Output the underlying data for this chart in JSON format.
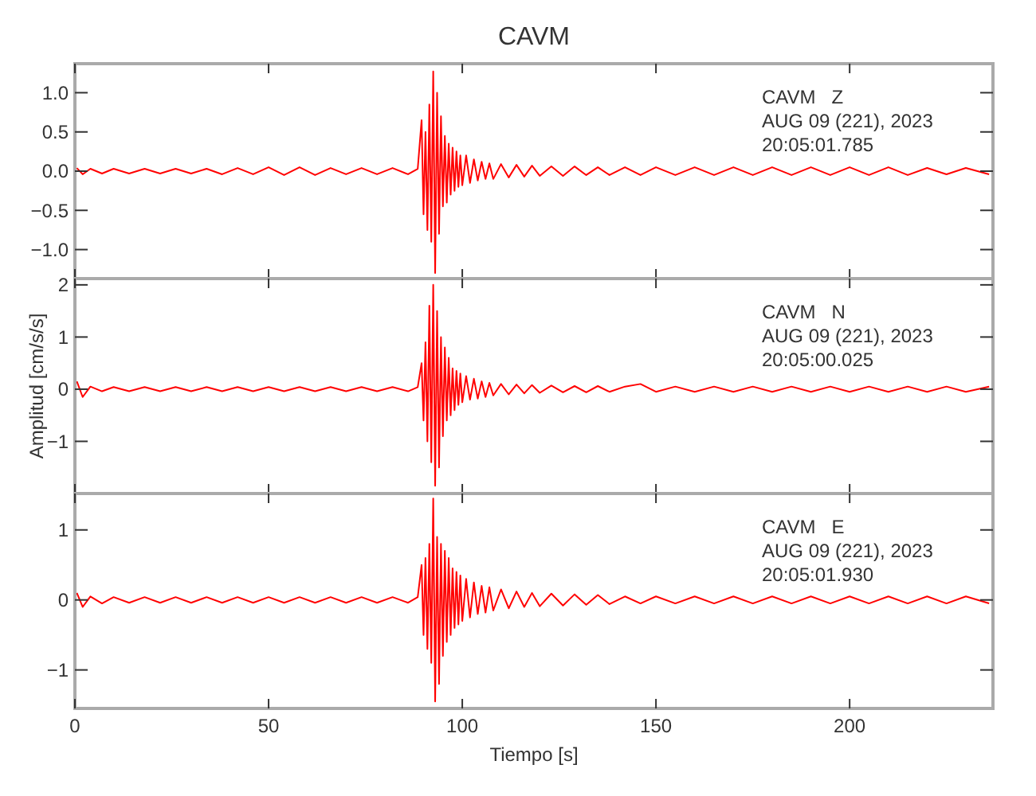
{
  "chart_data": [
    {
      "type": "line",
      "title": "CAVM",
      "annotations": [
        "CAVM   Z",
        "AUG 09 (221), 2023",
        "20:05:01.785"
      ],
      "tick_labels": "y",
      "grid": false,
      "x": [
        0.5,
        2,
        4,
        7,
        10,
        14,
        18,
        22,
        26,
        30,
        34,
        38,
        42,
        46,
        50,
        54,
        58,
        62,
        66,
        70,
        74,
        78,
        82,
        86,
        88.5,
        89.5,
        90,
        90.5,
        91,
        91.5,
        92,
        92.5,
        93,
        93.5,
        94,
        94.5,
        95,
        95.5,
        96,
        96.5,
        97,
        97.5,
        98,
        98.5,
        99,
        99.5,
        100,
        101,
        102,
        103,
        104,
        105,
        106,
        107,
        108,
        110,
        112,
        114,
        116,
        118,
        120,
        123,
        126,
        129,
        132,
        135,
        138,
        142,
        146,
        150,
        155,
        160,
        165,
        170,
        175,
        180,
        185,
        190,
        195,
        200,
        205,
        210,
        215,
        220,
        225,
        230,
        236
      ],
      "xlim": [
        0,
        237
      ],
      "xticks": [
        0,
        50,
        100,
        150,
        200
      ],
      "ylim": [
        -1.37,
        1.37
      ],
      "yticks": [
        {
          "value": -1,
          "label": "−1.0"
        },
        {
          "value": -0.5,
          "label": "−0.5"
        },
        {
          "value": 0,
          "label": "0.0"
        },
        {
          "value": 0.5,
          "label": "0.5"
        },
        {
          "value": 1,
          "label": "1.0"
        }
      ],
      "series": [
        {
          "color": "#ff0000",
          "values": [
            0.04,
            -0.04,
            0.03,
            -0.03,
            0.03,
            -0.03,
            0.03,
            -0.03,
            0.03,
            -0.03,
            0.03,
            -0.04,
            0.04,
            -0.04,
            0.05,
            -0.05,
            0.05,
            -0.05,
            0.04,
            -0.04,
            0.04,
            -0.04,
            0.04,
            -0.04,
            0.03,
            0.65,
            -0.55,
            0.5,
            -0.75,
            0.85,
            -0.9,
            1.27,
            -1.3,
            1.0,
            -0.8,
            0.7,
            -0.45,
            0.45,
            -0.4,
            0.35,
            -0.3,
            0.3,
            -0.25,
            0.25,
            -0.2,
            0.2,
            -0.18,
            0.2,
            -0.15,
            0.15,
            -0.12,
            0.12,
            -0.1,
            0.1,
            -0.1,
            0.09,
            -0.08,
            0.08,
            -0.07,
            0.07,
            -0.06,
            0.06,
            -0.06,
            0.06,
            -0.05,
            0.05,
            -0.05,
            0.05,
            -0.05,
            0.05,
            -0.05,
            0.05,
            -0.05,
            0.05,
            -0.05,
            0.05,
            -0.05,
            0.05,
            -0.05,
            0.05,
            -0.05,
            0.05,
            -0.05,
            0.04,
            -0.04,
            0.04,
            -0.04
          ]
        }
      ]
    },
    {
      "type": "line",
      "ylabel": "Amplitud [cm/s/s]",
      "annotations": [
        "CAVM   N",
        "AUG 09 (221), 2023",
        "20:05:00.025"
      ],
      "tick_labels": "y",
      "grid": false,
      "x": [
        0.5,
        2,
        4,
        7,
        10,
        14,
        18,
        22,
        26,
        30,
        34,
        38,
        42,
        46,
        50,
        54,
        58,
        62,
        66,
        70,
        74,
        78,
        82,
        86,
        88.5,
        89.5,
        90,
        90.5,
        91,
        91.5,
        92,
        92.5,
        93,
        93.5,
        94,
        94.5,
        95,
        95.5,
        96,
        96.5,
        97,
        97.5,
        98,
        98.5,
        99,
        99.5,
        100,
        101,
        102,
        103,
        104,
        105,
        106,
        107,
        108,
        110,
        112,
        114,
        116,
        118,
        120,
        123,
        126,
        129,
        132,
        135,
        138,
        142,
        146,
        150,
        155,
        160,
        165,
        170,
        175,
        180,
        185,
        190,
        195,
        200,
        205,
        210,
        215,
        220,
        225,
        230,
        236
      ],
      "xlim": [
        0,
        237
      ],
      "xticks": [
        0,
        50,
        100,
        150,
        200
      ],
      "ylim": [
        -2.0,
        2.12
      ],
      "yticks": [
        {
          "value": -1,
          "label": "−1"
        },
        0,
        1,
        2
      ],
      "series": [
        {
          "color": "#ff0000",
          "values": [
            0.15,
            -0.15,
            0.05,
            -0.04,
            0.04,
            -0.04,
            0.04,
            -0.04,
            0.04,
            -0.04,
            0.04,
            -0.04,
            0.04,
            -0.04,
            0.04,
            -0.04,
            0.04,
            -0.04,
            0.04,
            -0.04,
            0.04,
            -0.04,
            0.04,
            -0.04,
            0.04,
            0.5,
            -0.6,
            0.9,
            -1.0,
            1.6,
            -1.4,
            2.0,
            -1.85,
            1.5,
            -1.5,
            1.0,
            -0.9,
            0.8,
            -0.6,
            0.6,
            -0.5,
            0.4,
            -0.4,
            0.35,
            -0.3,
            0.3,
            -0.25,
            0.25,
            -0.2,
            0.2,
            -0.18,
            0.15,
            -0.15,
            0.12,
            -0.12,
            0.1,
            -0.1,
            0.09,
            -0.08,
            0.08,
            -0.07,
            0.07,
            -0.06,
            0.06,
            -0.06,
            0.06,
            -0.05,
            0.05,
            0.1,
            -0.05,
            0.05,
            -0.05,
            0.05,
            -0.05,
            0.05,
            -0.05,
            0.05,
            -0.05,
            0.05,
            -0.05,
            0.05,
            -0.05,
            0.05,
            -0.05,
            0.05,
            -0.05,
            0.05
          ]
        }
      ]
    },
    {
      "type": "line",
      "xlabel": "Tiempo [s]",
      "annotations": [
        "CAVM   E",
        "AUG 09 (221), 2023",
        "20:05:01.930"
      ],
      "grid": false,
      "x": [
        0.5,
        2,
        4,
        7,
        10,
        14,
        18,
        22,
        26,
        30,
        34,
        38,
        42,
        46,
        50,
        54,
        58,
        62,
        66,
        70,
        74,
        78,
        82,
        86,
        88.5,
        89.5,
        90,
        90.5,
        91,
        91.5,
        92,
        92.5,
        93,
        93.5,
        94,
        94.5,
        95,
        95.5,
        96,
        96.5,
        97,
        97.5,
        98,
        98.5,
        99,
        99.5,
        100,
        101,
        102,
        103,
        104,
        105,
        106,
        107,
        108,
        110,
        112,
        114,
        116,
        118,
        120,
        123,
        126,
        129,
        132,
        135,
        138,
        142,
        146,
        150,
        155,
        160,
        165,
        170,
        175,
        180,
        185,
        190,
        195,
        200,
        205,
        210,
        215,
        220,
        225,
        230,
        236
      ],
      "xlim": [
        0,
        237
      ],
      "xticks": [
        0,
        50,
        100,
        150,
        200
      ],
      "ylim": [
        -1.55,
        1.52
      ],
      "yticks": [
        {
          "value": -1,
          "label": "−1"
        },
        0,
        1
      ],
      "series": [
        {
          "color": "#ff0000",
          "values": [
            0.1,
            -0.1,
            0.05,
            -0.05,
            0.04,
            -0.04,
            0.04,
            -0.04,
            0.04,
            -0.04,
            0.04,
            -0.04,
            0.04,
            -0.04,
            0.04,
            -0.04,
            0.04,
            -0.04,
            0.04,
            -0.04,
            0.04,
            -0.04,
            0.04,
            -0.04,
            0.04,
            0.5,
            -0.5,
            0.6,
            -0.7,
            0.8,
            -0.9,
            1.45,
            -1.45,
            0.9,
            -1.2,
            0.8,
            -0.8,
            0.7,
            -0.6,
            0.6,
            -0.5,
            0.45,
            -0.4,
            0.4,
            -0.35,
            0.35,
            -0.3,
            0.3,
            -0.25,
            0.25,
            -0.2,
            0.2,
            -0.18,
            0.18,
            -0.15,
            0.15,
            -0.12,
            0.12,
            -0.1,
            0.1,
            -0.09,
            0.09,
            -0.08,
            0.08,
            -0.07,
            0.07,
            -0.06,
            0.05,
            -0.05,
            0.05,
            -0.05,
            0.05,
            -0.05,
            0.05,
            -0.05,
            0.05,
            -0.05,
            0.05,
            -0.05,
            0.05,
            -0.05,
            0.05,
            -0.05,
            0.05,
            -0.05,
            0.05,
            -0.05
          ]
        }
      ]
    }
  ]
}
